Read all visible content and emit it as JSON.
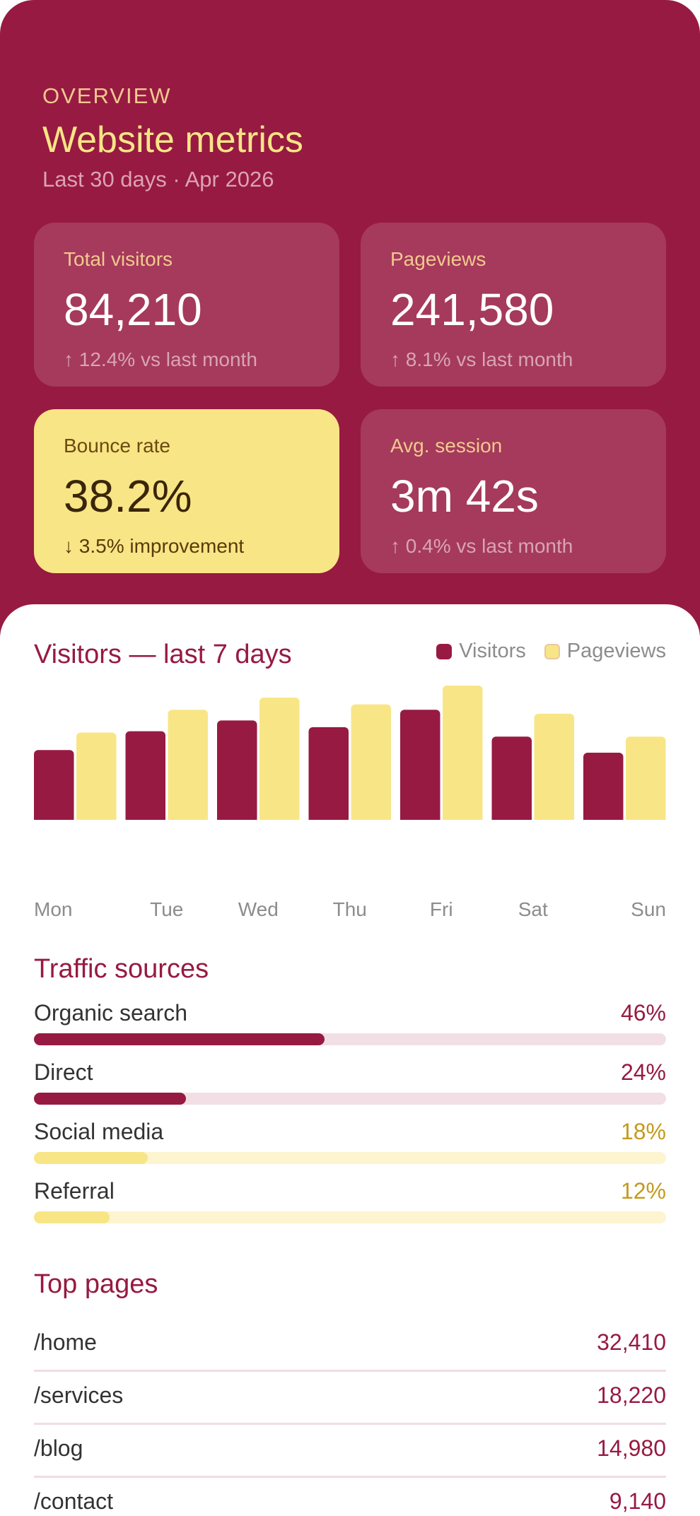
{
  "header": {
    "eyebrow": "OVERVIEW",
    "title": "Website metrics",
    "subtitle": "Last 30 days · Apr 2026"
  },
  "stats": [
    {
      "label": "Total visitors",
      "value": "84,210",
      "delta": "↑ 12.4% vs last month"
    },
    {
      "label": "Pageviews",
      "value": "241,580",
      "delta": "↑ 8.1% vs last month"
    },
    {
      "label": "Bounce rate",
      "value": "38.2%",
      "delta": "↓ 3.5% improvement"
    },
    {
      "label": "Avg. session",
      "value": "3m 42s",
      "delta": "↑ 0.4% vs last month"
    }
  ],
  "chart_section": {
    "title": "Visitors — last 7 days",
    "legend": [
      "Visitors",
      "Pageviews"
    ]
  },
  "chart_data": {
    "type": "bar",
    "title": "Visitors — last 7 days",
    "categories": [
      "Mon",
      "Tue",
      "Wed",
      "Thu",
      "Fri",
      "Sat",
      "Sun"
    ],
    "series": [
      {
        "name": "Visitors",
        "values": [
          52,
          66,
          74,
          69,
          82,
          62,
          50
        ]
      },
      {
        "name": "Pageviews",
        "values": [
          65,
          82,
          91,
          86,
          100,
          79,
          62
        ]
      }
    ],
    "ylim": [
      0,
      100
    ],
    "grid": false,
    "legend_position": "top-right",
    "colors": {
      "Visitors": "#971a42",
      "Pageviews": "#f8e586"
    }
  },
  "traffic": {
    "title": "Traffic sources",
    "items": [
      {
        "name": "Organic search",
        "pct_label": "46%",
        "value": 46,
        "tone": "primary"
      },
      {
        "name": "Direct",
        "pct_label": "24%",
        "value": 24,
        "tone": "primary"
      },
      {
        "name": "Social media",
        "pct_label": "18%",
        "value": 18,
        "tone": "accent"
      },
      {
        "name": "Referral",
        "pct_label": "12%",
        "value": 12,
        "tone": "accent"
      }
    ]
  },
  "top_pages": {
    "title": "Top pages",
    "rows": [
      {
        "path": "/home",
        "count": "32,410"
      },
      {
        "path": "/services",
        "count": "18,220"
      },
      {
        "path": "/blog",
        "count": "14,980"
      },
      {
        "path": "/contact",
        "count": "9,140"
      }
    ]
  },
  "colors": {
    "primary": "#971a42",
    "accent": "#f8e586",
    "primary_track": "#f2dfe5",
    "accent_track": "#fdf4d0",
    "primary_text": "#971a42",
    "accent_text": "#c49a1c"
  }
}
